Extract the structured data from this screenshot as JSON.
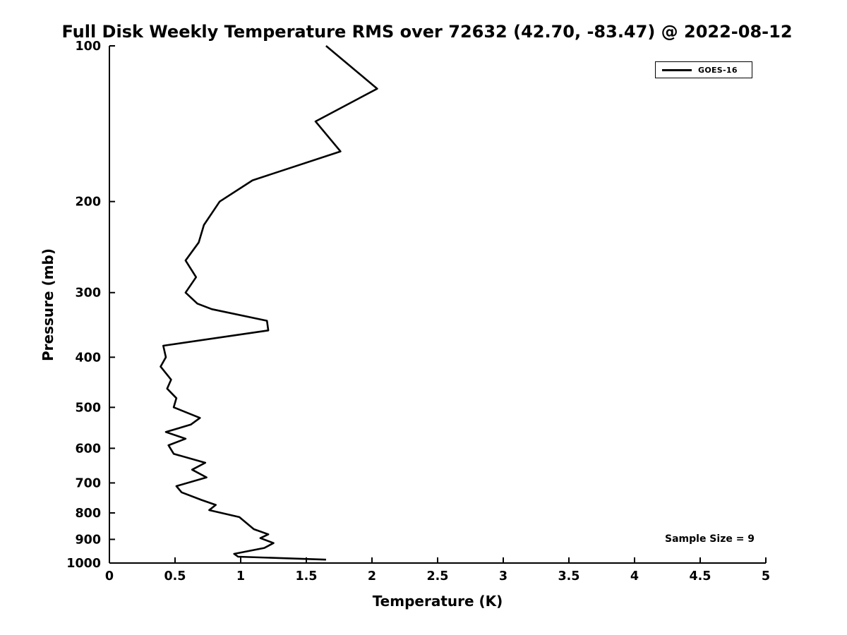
{
  "chart_data": {
    "type": "line",
    "title": "Full Disk Weekly Temperature RMS over 72632 (42.70, -83.47) @ 2022-08-12",
    "xlabel": "Temperature (K)",
    "ylabel": "Pressure (mb)",
    "xlim": [
      0,
      5
    ],
    "ylim": [
      100,
      1000
    ],
    "y_scale": "log",
    "y_inverted": true,
    "grid": false,
    "legend_position": "upper right",
    "annotation": "Sample Size = 9",
    "x_ticks": [
      0,
      0.5,
      1,
      1.5,
      2,
      2.5,
      3,
      3.5,
      4,
      4.5,
      5
    ],
    "y_ticks": [
      100,
      200,
      300,
      400,
      500,
      600,
      700,
      800,
      900,
      1000
    ],
    "series": [
      {
        "name": "GOES-16",
        "color": "#000000",
        "pressure_mb": [
          100,
          121,
          140,
          160,
          182,
          200,
          222,
          240,
          260,
          280,
          300,
          315,
          323,
          340,
          355,
          380,
          400,
          417,
          442,
          460,
          480,
          500,
          524,
          540,
          558,
          575,
          592,
          615,
          640,
          660,
          683,
          710,
          730,
          755,
          772,
          790,
          815,
          860,
          880,
          895,
          915,
          935,
          960,
          972,
          985
        ],
        "temperature_rms_k": [
          1.65,
          2.04,
          1.57,
          1.76,
          1.09,
          0.84,
          0.72,
          0.68,
          0.58,
          0.66,
          0.58,
          0.67,
          0.78,
          1.2,
          1.21,
          0.41,
          0.43,
          0.39,
          0.47,
          0.44,
          0.51,
          0.49,
          0.69,
          0.62,
          0.43,
          0.58,
          0.45,
          0.49,
          0.73,
          0.63,
          0.74,
          0.51,
          0.55,
          0.7,
          0.81,
          0.76,
          0.99,
          1.1,
          1.21,
          1.15,
          1.25,
          1.18,
          0.95,
          0.98,
          1.65
        ]
      }
    ]
  }
}
